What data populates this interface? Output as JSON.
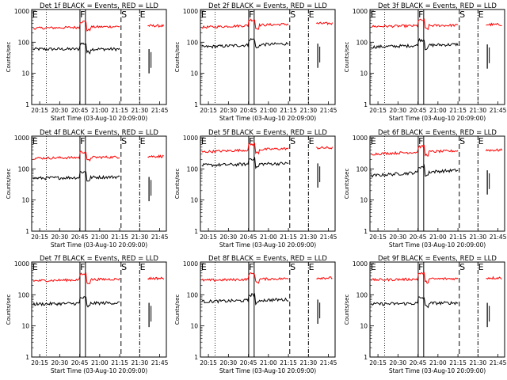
{
  "ylabel": "Counts/sec",
  "xlabel": "Start Time (03-Aug-10 20:09:00)",
  "xticks": [
    "20:15",
    "20:30",
    "20:45",
    "21:00",
    "21:15",
    "21:30",
    "21:45"
  ],
  "yticks": [
    "1",
    "10",
    "100",
    "1000"
  ],
  "colors": {
    "events": "#000000",
    "lld": "#ff0000"
  },
  "chart_data": [
    {
      "type": "line",
      "title": "Det 1f BLACK = Events, RED = LLD",
      "series": [
        {
          "name": "Events",
          "base": 60,
          "end": 60
        },
        {
          "name": "LLD",
          "base": 280,
          "end": 320
        }
      ]
    },
    {
      "type": "line",
      "title": "Det 2f BLACK = Events, RED = LLD",
      "series": [
        {
          "name": "Events",
          "base": 70,
          "end": 90
        },
        {
          "name": "LLD",
          "base": 300,
          "end": 380
        }
      ]
    },
    {
      "type": "line",
      "title": "Det 3f BLACK = Events, RED = LLD",
      "series": [
        {
          "name": "Events",
          "base": 70,
          "end": 85
        },
        {
          "name": "LLD",
          "base": 320,
          "end": 350
        }
      ]
    },
    {
      "type": "line",
      "title": "Det 4f BLACK = Events, RED = LLD",
      "series": [
        {
          "name": "Events",
          "base": 50,
          "end": 55
        },
        {
          "name": "LLD",
          "base": 220,
          "end": 240
        }
      ]
    },
    {
      "type": "line",
      "title": "Det 5f BLACK = Events, RED = LLD",
      "series": [
        {
          "name": "Events",
          "base": 130,
          "end": 150
        },
        {
          "name": "LLD",
          "base": 350,
          "end": 450
        }
      ]
    },
    {
      "type": "line",
      "title": "Det 6f BLACK = Events, RED = LLD",
      "series": [
        {
          "name": "Events",
          "base": 60,
          "end": 90
        },
        {
          "name": "LLD",
          "base": 300,
          "end": 380
        }
      ]
    },
    {
      "type": "line",
      "title": "Det 7f BLACK = Events, RED = LLD",
      "series": [
        {
          "name": "Events",
          "base": 50,
          "end": 55
        },
        {
          "name": "LLD",
          "base": 280,
          "end": 320
        }
      ]
    },
    {
      "type": "line",
      "title": "Det 8f BLACK = Events, RED = LLD",
      "series": [
        {
          "name": "Events",
          "base": 60,
          "end": 70
        },
        {
          "name": "LLD",
          "base": 290,
          "end": 330
        }
      ]
    },
    {
      "type": "line",
      "title": "Det 9f BLACK = Events, RED = LLD",
      "series": [
        {
          "name": "Events",
          "base": 50,
          "end": 55
        },
        {
          "name": "LLD",
          "base": 300,
          "end": 330
        }
      ]
    }
  ]
}
